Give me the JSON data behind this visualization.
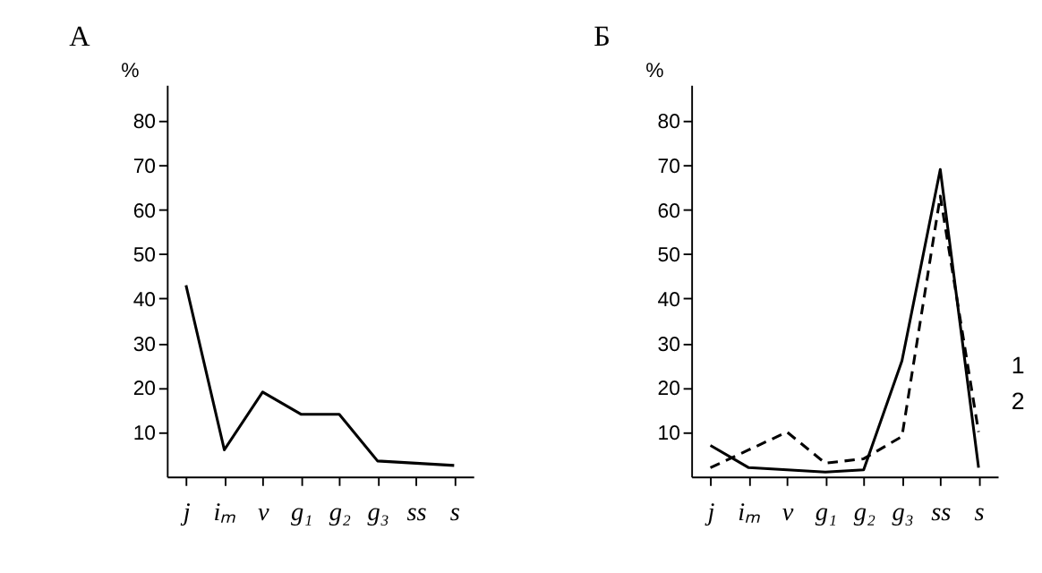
{
  "chart_data": [
    {
      "type": "line",
      "title": "А",
      "ylabel": "%",
      "categories": [
        "j",
        "iₘ",
        "v",
        "g₁",
        "g₂",
        "g₃",
        "ss",
        "s"
      ],
      "series": [
        {
          "color": "#000000",
          "values": [
            43,
            6,
            19,
            14,
            14,
            3.5,
            3,
            2.5
          ]
        }
      ],
      "ylim": [
        0,
        88
      ],
      "yticks": [
        10,
        20,
        30,
        40,
        50,
        60,
        70,
        80
      ],
      "grid": false,
      "marker": "none",
      "line_style": "solid"
    },
    {
      "type": "line",
      "title": "Б",
      "ylabel": "%",
      "categories": [
        "j",
        "iₘ",
        "v",
        "g₁",
        "g₂",
        "g₃",
        "ss",
        "s"
      ],
      "series": [
        {
          "name": "1",
          "color": "#000000",
          "values": [
            7,
            2,
            1.5,
            1,
            1.5,
            26,
            69,
            2
          ],
          "line_style": "solid"
        },
        {
          "name": "2",
          "color": "#000000",
          "values": [
            2,
            6,
            10,
            3,
            4,
            9,
            63,
            10
          ],
          "line_style": "dashed"
        }
      ],
      "ylim": [
        0,
        88
      ],
      "yticks": [
        10,
        20,
        30,
        40,
        50,
        60,
        70,
        80
      ],
      "grid": false,
      "marker": "none"
    }
  ]
}
